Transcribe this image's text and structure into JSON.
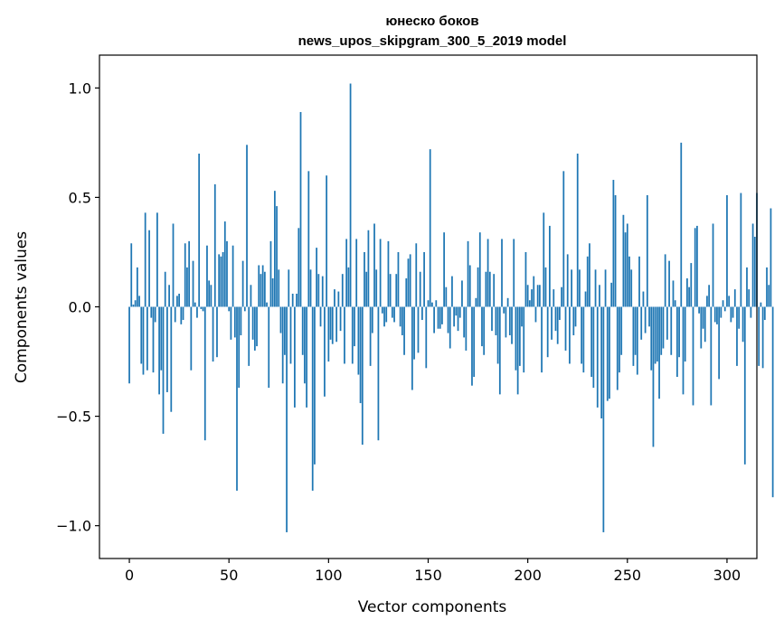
{
  "chart_data": {
    "type": "bar",
    "title": "юнеско боков",
    "subtitle": "news_upos_skipgram_300_5_2019 model",
    "xlabel": "Vector components",
    "ylabel": "Components values",
    "xlim": [
      -15,
      315
    ],
    "ylim": [
      -1.15,
      1.15
    ],
    "x_ticks": [
      0,
      50,
      100,
      150,
      200,
      250,
      300
    ],
    "x_tick_labels": [
      "0",
      "50",
      "100",
      "150",
      "200",
      "250",
      "300"
    ],
    "y_ticks": [
      -1.0,
      -0.5,
      0.0,
      0.5,
      1.0
    ],
    "y_tick_labels": [
      "−1.0",
      "−0.5",
      "0.0",
      "0.5",
      "1.0"
    ],
    "grid": false,
    "bar_color": "#1f77b4",
    "values": [
      -0.35,
      0.29,
      0.01,
      0.03,
      0.18,
      0.05,
      -0.26,
      -0.31,
      0.43,
      -0.29,
      0.35,
      -0.05,
      -0.3,
      -0.07,
      0.43,
      -0.4,
      -0.29,
      -0.58,
      0.16,
      -0.39,
      0.1,
      -0.48,
      0.38,
      -0.07,
      0.05,
      0.06,
      -0.08,
      -0.06,
      0.29,
      0.18,
      0.3,
      -0.29,
      0.21,
      0.02,
      -0.05,
      0.7,
      -0.01,
      -0.02,
      -0.61,
      0.28,
      0.12,
      0.1,
      -0.25,
      0.56,
      -0.23,
      0.24,
      0.23,
      0.25,
      0.39,
      0.3,
      -0.02,
      -0.15,
      0.28,
      -0.14,
      -0.84,
      -0.37,
      -0.13,
      0.21,
      -0.02,
      0.74,
      -0.27,
      0.1,
      -0.15,
      -0.2,
      -0.18,
      0.19,
      0.15,
      0.19,
      0.16,
      0.02,
      -0.37,
      0.3,
      0.13,
      0.53,
      0.46,
      0.17,
      -0.12,
      -0.35,
      -0.22,
      -1.03,
      0.17,
      -0.26,
      0.06,
      -0.46,
      0.06,
      0.36,
      0.89,
      -0.22,
      -0.35,
      -0.46,
      0.62,
      0.17,
      -0.84,
      -0.72,
      0.27,
      0.15,
      -0.09,
      0.14,
      -0.41,
      0.6,
      -0.25,
      -0.15,
      -0.17,
      0.08,
      -0.16,
      0.07,
      -0.11,
      0.15,
      -0.26,
      0.31,
      0.18,
      1.02,
      -0.26,
      -0.18,
      0.31,
      -0.31,
      -0.44,
      -0.63,
      0.25,
      0.16,
      0.35,
      -0.27,
      -0.12,
      0.38,
      0.17,
      -0.61,
      0.31,
      -0.03,
      -0.09,
      -0.07,
      0.3,
      0.15,
      -0.05,
      -0.07,
      0.15,
      0.25,
      -0.09,
      -0.13,
      -0.22,
      0.13,
      0.22,
      0.24,
      -0.38,
      -0.24,
      0.29,
      -0.21,
      0.16,
      -0.06,
      0.25,
      -0.28,
      0.03,
      0.72,
      0.02,
      -0.12,
      0.03,
      -0.1,
      -0.1,
      -0.08,
      0.34,
      0.09,
      -0.12,
      -0.19,
      0.14,
      -0.09,
      -0.04,
      -0.11,
      -0.05,
      0.12,
      -0.14,
      -0.2,
      0.3,
      0.19,
      -0.36,
      -0.32,
      0.04,
      0.18,
      0.34,
      -0.18,
      -0.22,
      0.16,
      0.31,
      0.16,
      -0.11,
      0.15,
      -0.13,
      -0.26,
      -0.4,
      0.31,
      -0.03,
      -0.14,
      0.04,
      -0.13,
      -0.17,
      0.31,
      -0.29,
      -0.4,
      -0.27,
      -0.09,
      -0.3,
      0.25,
      0.1,
      0.03,
      0.08,
      0.14,
      -0.07,
      0.1,
      0.1,
      -0.3,
      0.43,
      0.18,
      -0.23,
      0.37,
      -0.15,
      0.08,
      -0.11,
      -0.17,
      -0.06,
      0.09,
      0.62,
      -0.2,
      0.24,
      -0.26,
      0.17,
      -0.13,
      -0.09,
      0.7,
      0.17,
      -0.26,
      -0.3,
      0.07,
      0.23,
      0.29,
      -0.32,
      -0.37,
      0.17,
      -0.46,
      0.1,
      -0.51,
      -1.03,
      0.17,
      -0.43,
      -0.42,
      0.11,
      0.58,
      0.51,
      -0.38,
      -0.3,
      -0.22,
      0.42,
      0.34,
      0.38,
      0.23,
      0.17,
      -0.27,
      -0.22,
      -0.31,
      0.23,
      -0.15,
      0.07,
      -0.12,
      0.51,
      -0.09,
      -0.29,
      -0.64,
      -0.26,
      -0.25,
      -0.42,
      -0.22,
      -0.19,
      0.24,
      -0.15,
      0.21,
      -0.22,
      0.12,
      0.03,
      -0.32,
      -0.23,
      0.75,
      -0.4,
      -0.25,
      0.13,
      0.09,
      0.2,
      -0.45,
      0.36,
      0.37,
      -0.03,
      -0.19,
      -0.1,
      -0.16,
      0.05,
      0.1,
      -0.45,
      0.38,
      -0.07,
      -0.08,
      -0.33,
      -0.05,
      0.03,
      -0.02,
      0.51,
      0.05,
      -0.07,
      -0.05,
      0.08,
      -0.27,
      -0.1,
      0.52,
      -0.16,
      -0.72,
      0.18,
      0.08,
      -0.05,
      0.38,
      0.32,
      0.52,
      -0.27,
      0.02,
      -0.28,
      -0.06,
      0.18,
      0.1,
      0.45,
      -0.87
    ]
  }
}
